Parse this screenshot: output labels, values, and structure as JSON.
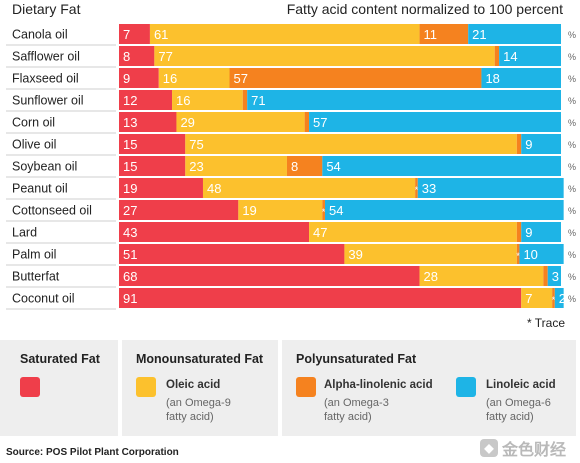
{
  "chart_data": {
    "type": "bar",
    "orientation": "horizontal-stacked",
    "row_header": "Dietary Fat",
    "title": "Fatty acid content normalized to 100 percent",
    "categories": [
      "Canola oil",
      "Safflower oil",
      "Flaxseed oil",
      "Sunflower oil",
      "Corn oil",
      "Olive oil",
      "Soybean oil",
      "Peanut oil",
      "Cottonseed oil",
      "Lard",
      "Palm oil",
      "Butterfat",
      "Coconut oil"
    ],
    "series": [
      {
        "key": "saturated",
        "name": "Saturated Fat",
        "color": "#ef3e4a",
        "values": [
          7,
          8,
          9,
          12,
          13,
          15,
          15,
          19,
          27,
          43,
          51,
          68,
          91
        ]
      },
      {
        "key": "oleic",
        "name": "Oleic acid",
        "color": "#fcc12d",
        "values": [
          61,
          77,
          16,
          16,
          29,
          75,
          23,
          48,
          19,
          47,
          39,
          28,
          7
        ]
      },
      {
        "key": "alpha",
        "name": "Alpha-linolenic acid",
        "color": "#f5821f",
        "values": [
          11,
          1,
          57,
          1,
          1,
          1,
          8,
          "*",
          "*",
          1,
          "*",
          1,
          "*"
        ]
      },
      {
        "key": "linoleic",
        "name": "Linoleic acid",
        "color": "#1eb4e6",
        "values": [
          21,
          14,
          18,
          71,
          57,
          9,
          54,
          33,
          54,
          9,
          10,
          3,
          2
        ]
      }
    ],
    "percent_sign": "%",
    "footnote": "* Trace",
    "xlim": [
      0,
      100
    ]
  },
  "legend": {
    "groups": [
      {
        "title": "Saturated Fat",
        "items": [
          {
            "series": "saturated",
            "label": "",
            "desc": ""
          }
        ]
      },
      {
        "title": "Monounsaturated Fat",
        "items": [
          {
            "series": "oleic",
            "label": "Oleic acid",
            "desc": "(an Omega-9\nfatty acid)"
          }
        ]
      },
      {
        "title": "Polyunsaturated Fat",
        "items": [
          {
            "series": "alpha",
            "label": "Alpha-linolenic acid",
            "desc": "(an Omega-3\nfatty acid)"
          },
          {
            "series": "linoleic",
            "label": "Linoleic acid",
            "desc": "(an Omega-6\nfatty acid)"
          }
        ]
      }
    ]
  },
  "source": "Source: POS Pilot Plant Corporation",
  "watermark": "金色财经"
}
